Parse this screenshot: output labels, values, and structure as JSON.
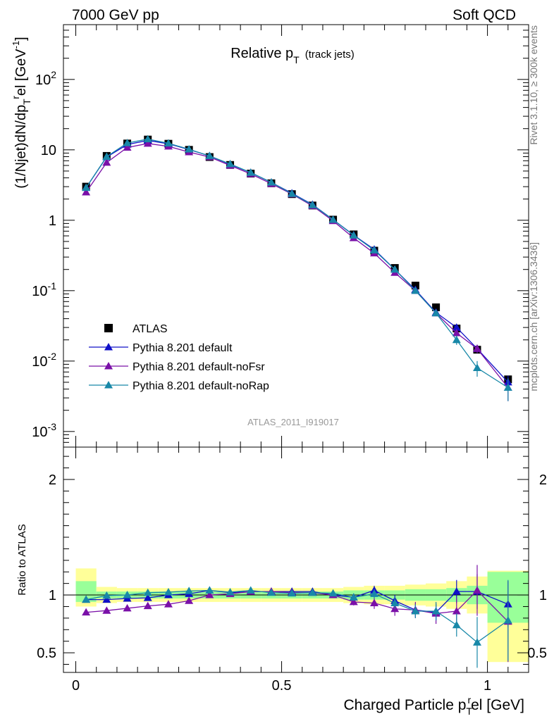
{
  "header": {
    "left_label": "7000 GeV pp",
    "right_label": "Soft QCD"
  },
  "side_labels": {
    "rivet": "Rivet 3.1.10, ≥ 300k events",
    "mcplots": "mcplots.cern.ch [arXiv:1306.3436]"
  },
  "chart_data": [
    {
      "type": "line",
      "panel": "main",
      "title": "Relative p",
      "title_sub": "T",
      "title_note": "(track jets)",
      "watermark": "ATLAS_2011_I919017",
      "ylabel_parts": [
        "(1/Njet)dN/dp",
        "T",
        "r",
        "el [GeV",
        "-1",
        "]"
      ],
      "y_scale": "log",
      "ylim": [
        0.0006,
        600
      ],
      "xlim": [
        -0.03,
        1.1
      ],
      "y_ticks": [
        {
          "value": 0.001,
          "mantissa": "10",
          "exp": "-3"
        },
        {
          "value": 0.01,
          "mantissa": "10",
          "exp": "-2"
        },
        {
          "value": 0.1,
          "mantissa": "10",
          "exp": "-1"
        },
        {
          "value": 1,
          "mantissa": "1",
          "exp": ""
        },
        {
          "value": 10,
          "mantissa": "10",
          "exp": ""
        },
        {
          "value": 100,
          "mantissa": "10",
          "exp": "2"
        }
      ],
      "legend_position": "bottom-left",
      "x": [
        0.025,
        0.075,
        0.125,
        0.175,
        0.225,
        0.275,
        0.325,
        0.375,
        0.425,
        0.475,
        0.525,
        0.575,
        0.625,
        0.675,
        0.725,
        0.775,
        0.825,
        0.875,
        0.925,
        0.975,
        1.05
      ],
      "series": [
        {
          "name": "ATLAS",
          "color": "#000000",
          "marker": "square",
          "values": [
            3.0,
            8.2,
            12.3,
            14.0,
            12.2,
            10.0,
            7.9,
            6.1,
            4.6,
            3.35,
            2.35,
            1.62,
            1.02,
            0.63,
            0.37,
            0.21,
            0.118,
            0.058,
            0.029,
            0.0145,
            0.0055
          ]
        },
        {
          "name": "Pythia 8.201 default",
          "color": "#1010c8",
          "marker": "triangle",
          "values": [
            2.9,
            7.9,
            11.9,
            13.6,
            12.2,
            10.1,
            8.2,
            6.2,
            4.75,
            3.45,
            2.42,
            1.67,
            1.02,
            0.615,
            0.385,
            0.2,
            0.103,
            0.049,
            0.03,
            0.015,
            0.005
          ],
          "err": [
            0.1,
            0.2,
            0.3,
            0.3,
            0.3,
            0.2,
            0.2,
            0.15,
            0.1,
            0.08,
            0.06,
            0.04,
            0.03,
            0.02,
            0.015,
            0.01,
            0.006,
            0.004,
            0.003,
            0.002,
            0.0012
          ]
        },
        {
          "name": "Pythia 8.201 default-noFsr",
          "color": "#7a10a8",
          "marker": "triangle",
          "values": [
            2.5,
            6.6,
            10.8,
            12.3,
            11.2,
            9.3,
            7.9,
            6.0,
            4.55,
            3.3,
            2.35,
            1.6,
            0.98,
            0.56,
            0.34,
            0.18,
            0.1,
            0.048,
            0.025,
            0.015,
            0.0042
          ],
          "err": [
            0.1,
            0.2,
            0.3,
            0.3,
            0.3,
            0.2,
            0.2,
            0.15,
            0.1,
            0.08,
            0.06,
            0.04,
            0.03,
            0.02,
            0.015,
            0.01,
            0.006,
            0.004,
            0.003,
            0.002,
            0.0015
          ]
        },
        {
          "name": "Pythia 8.201 default-noRap",
          "color": "#1888a8",
          "marker": "triangle",
          "values": [
            2.9,
            8.0,
            12.5,
            14.2,
            12.4,
            10.2,
            8.2,
            6.3,
            4.75,
            3.45,
            2.38,
            1.65,
            1.02,
            0.61,
            0.375,
            0.2,
            0.1,
            0.048,
            0.02,
            0.008,
            0.0042
          ],
          "err": [
            0.1,
            0.2,
            0.3,
            0.3,
            0.3,
            0.2,
            0.2,
            0.15,
            0.1,
            0.08,
            0.06,
            0.04,
            0.03,
            0.02,
            0.015,
            0.01,
            0.006,
            0.004,
            0.003,
            0.002,
            0.0015
          ]
        }
      ]
    },
    {
      "type": "line",
      "panel": "ratio",
      "ylabel": "Ratio to ATLAS",
      "xlabel_parts": [
        "Charged Particle p",
        "T",
        "r",
        "el [GeV]"
      ],
      "ylim": [
        0.33,
        2.28
      ],
      "xlim": [
        -0.03,
        1.1
      ],
      "y_ticks": [
        {
          "value": 0.5,
          "label": "0.5"
        },
        {
          "value": 1,
          "label": "1"
        },
        {
          "value": 2,
          "label": "2"
        }
      ],
      "x_ticks": [
        {
          "value": 0,
          "label": "0"
        },
        {
          "value": 0.5,
          "label": "0.5"
        },
        {
          "value": 1,
          "label": "1"
        }
      ],
      "reference": 1,
      "bands": [
        {
          "x0": 0.0,
          "x1": 0.05,
          "inner": [
            0.94,
            1.12
          ],
          "outer": [
            0.9,
            1.23
          ]
        },
        {
          "x0": 0.05,
          "x1": 0.1,
          "inner": [
            0.97,
            1.03
          ],
          "outer": [
            0.93,
            1.07
          ]
        },
        {
          "x0": 0.1,
          "x1": 0.15,
          "inner": [
            0.97,
            1.03
          ],
          "outer": [
            0.94,
            1.06
          ]
        },
        {
          "x0": 0.15,
          "x1": 0.2,
          "inner": [
            0.97,
            1.03
          ],
          "outer": [
            0.94,
            1.06
          ]
        },
        {
          "x0": 0.2,
          "x1": 0.25,
          "inner": [
            0.97,
            1.03
          ],
          "outer": [
            0.94,
            1.06
          ]
        },
        {
          "x0": 0.25,
          "x1": 0.3,
          "inner": [
            0.97,
            1.03
          ],
          "outer": [
            0.94,
            1.06
          ]
        },
        {
          "x0": 0.3,
          "x1": 0.35,
          "inner": [
            0.97,
            1.03
          ],
          "outer": [
            0.94,
            1.06
          ]
        },
        {
          "x0": 0.35,
          "x1": 0.4,
          "inner": [
            0.97,
            1.03
          ],
          "outer": [
            0.94,
            1.06
          ]
        },
        {
          "x0": 0.4,
          "x1": 0.45,
          "inner": [
            0.97,
            1.03
          ],
          "outer": [
            0.94,
            1.06
          ]
        },
        {
          "x0": 0.45,
          "x1": 0.5,
          "inner": [
            0.97,
            1.03
          ],
          "outer": [
            0.94,
            1.06
          ]
        },
        {
          "x0": 0.5,
          "x1": 0.55,
          "inner": [
            0.97,
            1.03
          ],
          "outer": [
            0.94,
            1.06
          ]
        },
        {
          "x0": 0.55,
          "x1": 0.6,
          "inner": [
            0.97,
            1.03
          ],
          "outer": [
            0.94,
            1.06
          ]
        },
        {
          "x0": 0.6,
          "x1": 0.65,
          "inner": [
            0.97,
            1.03
          ],
          "outer": [
            0.94,
            1.06
          ]
        },
        {
          "x0": 0.65,
          "x1": 0.7,
          "inner": [
            0.96,
            1.04
          ],
          "outer": [
            0.93,
            1.07
          ]
        },
        {
          "x0": 0.7,
          "x1": 0.75,
          "inner": [
            0.96,
            1.04
          ],
          "outer": [
            0.92,
            1.08
          ]
        },
        {
          "x0": 0.75,
          "x1": 0.8,
          "inner": [
            0.96,
            1.04
          ],
          "outer": [
            0.92,
            1.08
          ]
        },
        {
          "x0": 0.8,
          "x1": 0.85,
          "inner": [
            0.95,
            1.05
          ],
          "outer": [
            0.91,
            1.09
          ]
        },
        {
          "x0": 0.85,
          "x1": 0.9,
          "inner": [
            0.95,
            1.05
          ],
          "outer": [
            0.9,
            1.1
          ]
        },
        {
          "x0": 0.9,
          "x1": 0.95,
          "inner": [
            0.94,
            1.06
          ],
          "outer": [
            0.88,
            1.12
          ]
        },
        {
          "x0": 0.95,
          "x1": 1.0,
          "inner": [
            0.92,
            1.08
          ],
          "outer": [
            0.84,
            1.16
          ]
        },
        {
          "x0": 1.0,
          "x1": 1.1,
          "inner": [
            0.76,
            1.2
          ],
          "outer": [
            0.42,
            1.21
          ]
        }
      ],
      "x": [
        0.025,
        0.075,
        0.125,
        0.175,
        0.225,
        0.275,
        0.325,
        0.375,
        0.425,
        0.475,
        0.525,
        0.575,
        0.625,
        0.675,
        0.725,
        0.775,
        0.825,
        0.875,
        0.925,
        0.975,
        1.05
      ],
      "series": [
        {
          "name": "Pythia 8.201 default",
          "color": "#1010c8",
          "values": [
            0.96,
            0.96,
            0.97,
            0.975,
            1.0,
            1.01,
            1.04,
            1.02,
            1.03,
            1.03,
            1.03,
            1.03,
            1.0,
            0.98,
            1.04,
            0.95,
            0.87,
            0.85,
            1.03,
            1.03,
            0.92
          ],
          "err": [
            0.01,
            0.01,
            0.01,
            0.01,
            0.01,
            0.01,
            0.01,
            0.01,
            0.01,
            0.01,
            0.01,
            0.01,
            0.02,
            0.03,
            0.04,
            0.05,
            0.06,
            0.07,
            0.1,
            0.15,
            0.2
          ]
        },
        {
          "name": "Pythia 8.201 default-noFsr",
          "color": "#7a10a8",
          "values": [
            0.85,
            0.865,
            0.885,
            0.905,
            0.92,
            0.95,
            1.0,
            1.01,
            1.03,
            1.03,
            1.02,
            1.02,
            1.0,
            0.94,
            0.93,
            0.88,
            0.87,
            0.84,
            0.86,
            1.04,
            0.77
          ],
          "err": [
            0.01,
            0.01,
            0.01,
            0.01,
            0.01,
            0.01,
            0.01,
            0.01,
            0.01,
            0.01,
            0.01,
            0.01,
            0.02,
            0.03,
            0.05,
            0.06,
            0.07,
            0.09,
            0.12,
            0.22,
            0.35
          ]
        },
        {
          "name": "Pythia 8.201 default-noRap",
          "color": "#1888a8",
          "values": [
            0.96,
            0.995,
            1.0,
            1.02,
            1.025,
            1.035,
            1.04,
            1.025,
            1.04,
            1.02,
            1.015,
            1.02,
            1.015,
            0.98,
            1.01,
            0.93,
            0.86,
            0.86,
            0.74,
            0.59,
            0.78
          ],
          "err": [
            0.01,
            0.01,
            0.01,
            0.01,
            0.01,
            0.01,
            0.01,
            0.01,
            0.01,
            0.01,
            0.01,
            0.01,
            0.02,
            0.03,
            0.04,
            0.05,
            0.06,
            0.08,
            0.1,
            0.22,
            0.35
          ]
        }
      ]
    }
  ]
}
